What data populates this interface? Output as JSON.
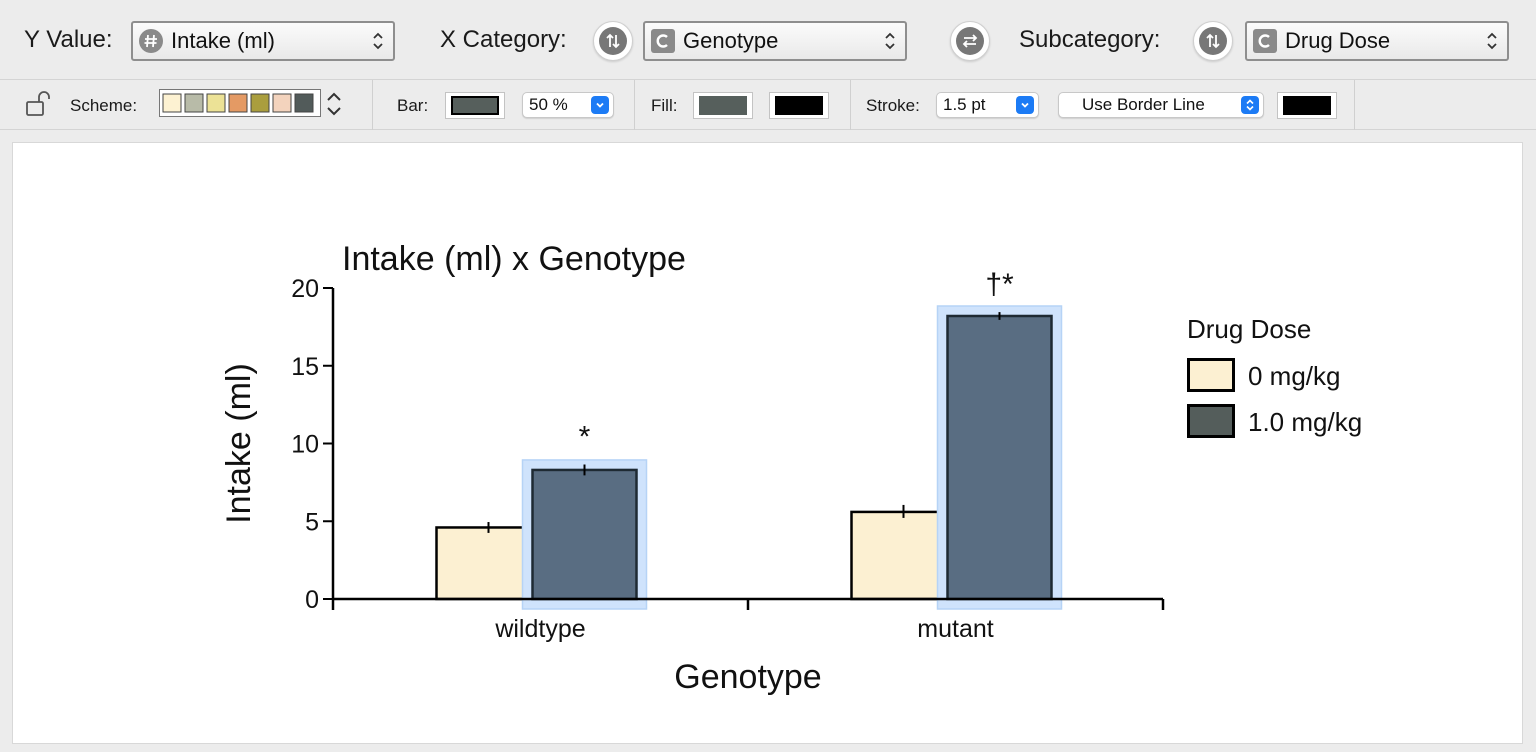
{
  "toolbar": {
    "y_value_label": "Y Value:",
    "y_value": "Intake (ml)",
    "x_category_label": "X Category:",
    "x_category": "Genotype",
    "subcategory_label": "Subcategory:",
    "subcategory": "Drug Dose"
  },
  "style_bar": {
    "scheme_label": "Scheme:",
    "scheme_colors": [
      "#fdf2d2",
      "#b8bba8",
      "#ece296",
      "#e49a64",
      "#aa9e3e",
      "#f3d3bd",
      "#525b5a"
    ],
    "bar_label": "Bar:",
    "bar_color": "#565f5c",
    "bar_width": "50 %",
    "fill_label": "Fill:",
    "fill_color": "#565f5c",
    "fill_color_2": "#000000",
    "stroke_label": "Stroke:",
    "stroke_width": "1.5 pt",
    "border_mode": "Use Border Line",
    "border_color": "#000000"
  },
  "chart_data": {
    "type": "bar",
    "title": "Intake (ml) x Genotype",
    "xlabel": "Genotype",
    "ylabel": "Intake (ml)",
    "ylim": [
      0,
      20
    ],
    "yticks": [
      "0",
      "5",
      "10",
      "15",
      "20"
    ],
    "categories": [
      "wildtype",
      "mutant"
    ],
    "legend_title": "Drug Dose",
    "series": [
      {
        "name": "0 mg/kg",
        "values": [
          4.6,
          5.6
        ],
        "errors": [
          0.35,
          0.45
        ],
        "color": "#fcf0d2",
        "selected": false
      },
      {
        "name": "1.0 mg/kg",
        "values": [
          8.3,
          18.2
        ],
        "errors": [
          0.35,
          0.25
        ],
        "color": "#596d82",
        "selected": true
      }
    ],
    "annotations": [
      "*",
      "†*"
    ],
    "legend_swatch_colors": [
      "#fcf0d2",
      "#545d5b"
    ],
    "selection_color": "#cfe3fc"
  }
}
